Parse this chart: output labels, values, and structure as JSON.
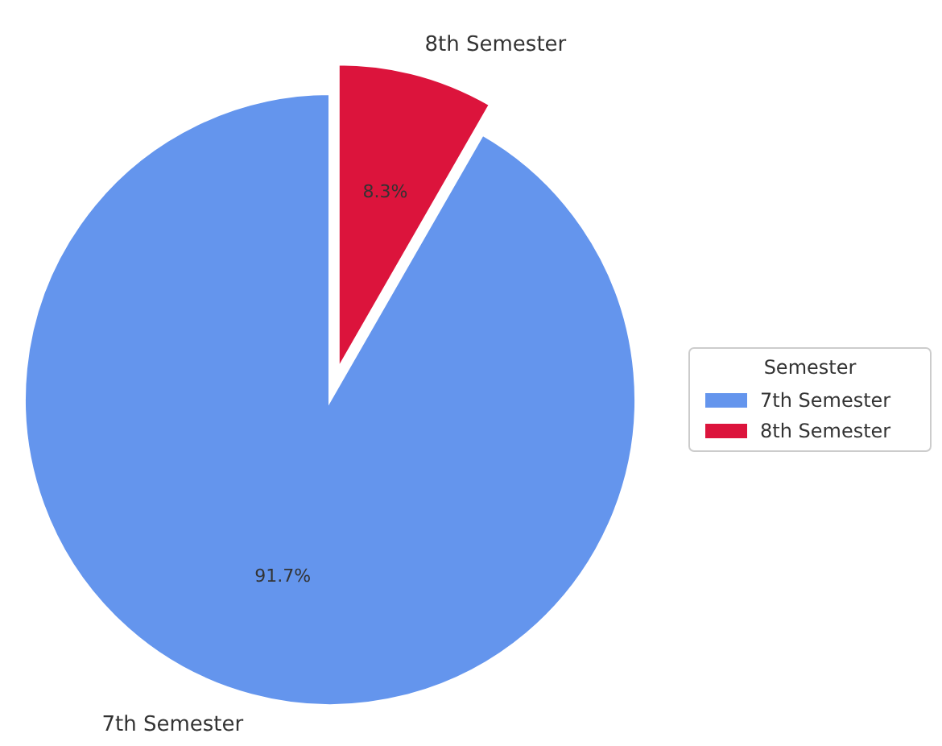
{
  "chart_data": {
    "type": "pie",
    "legend_title": "Semester",
    "categories": [
      "7th Semester",
      "8th Semester"
    ],
    "values": [
      91.7,
      8.3
    ],
    "colors": [
      "#6495ed",
      "#dc143c"
    ],
    "value_labels": [
      "91.7%",
      "8.3%"
    ],
    "legend": "right"
  }
}
